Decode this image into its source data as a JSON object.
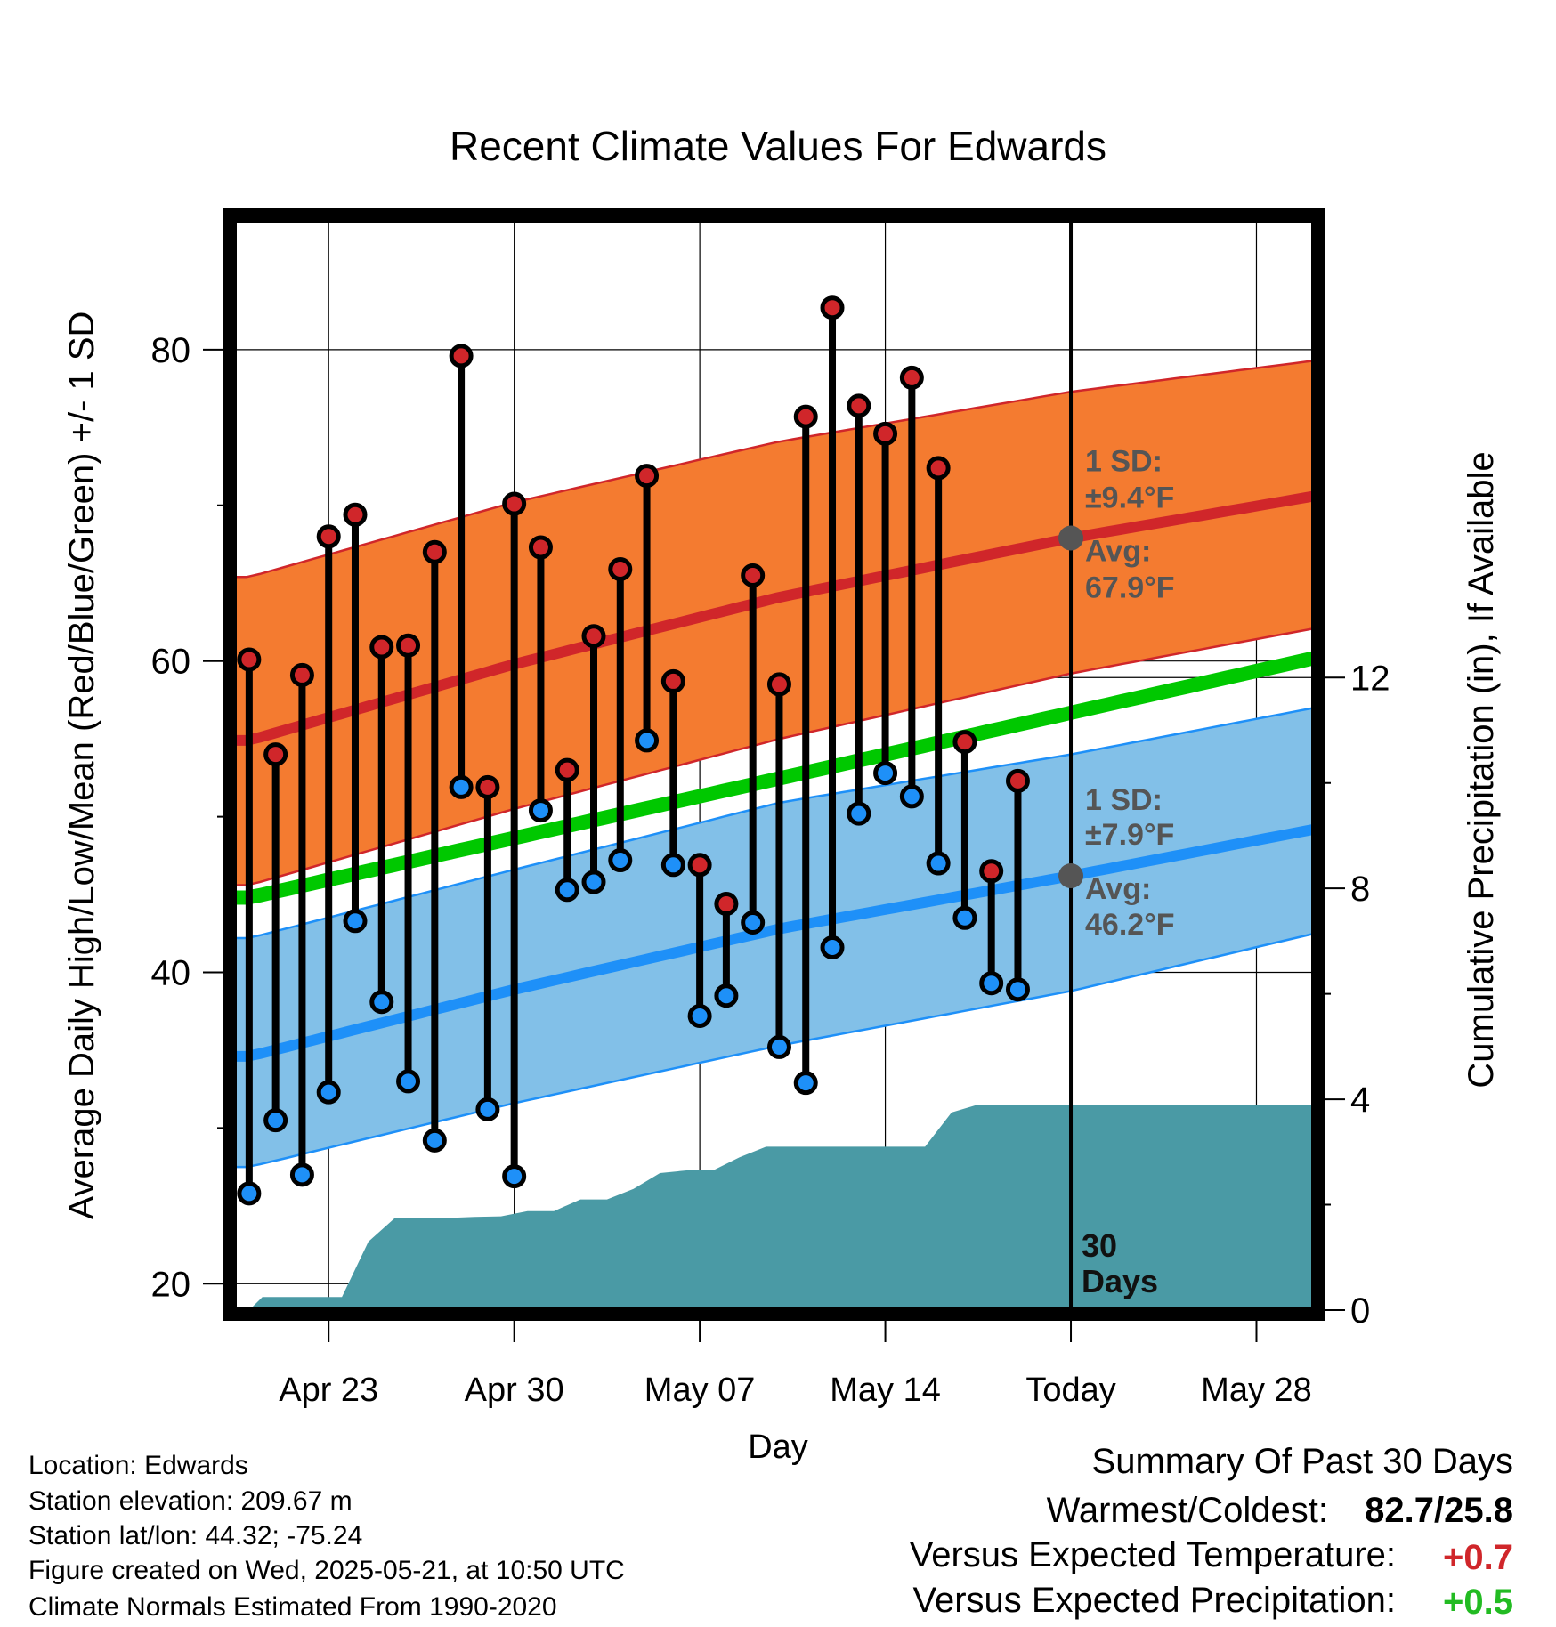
{
  "chart_data": {
    "type": "line",
    "title": "Recent Climate Values For Edwards",
    "xlabel": "Day",
    "ylabel": "Average Daily High/Low/Mean (Red/Blue/Green) +/- 1 SD",
    "y2label": "Cumulative Precipitation (in), If Available",
    "x_tick_labels": [
      "Apr 23",
      "Apr 30",
      "May 07",
      "May 14",
      "Today",
      "May 28"
    ],
    "x_tick_days": [
      3,
      10,
      17,
      24,
      31,
      38
    ],
    "xlim": [
      -0.6,
      40.2
    ],
    "ylim": [
      18.3,
      88.4
    ],
    "y_ticks": [
      20,
      40,
      60,
      80
    ],
    "y2lim": [
      0,
      20.7
    ],
    "y2_ticks": [
      0,
      4,
      8,
      12
    ],
    "grid": true,
    "days": [
      0,
      1,
      2,
      3,
      4,
      5,
      6,
      7,
      8,
      9,
      10,
      11,
      12,
      13,
      14,
      15,
      16,
      17,
      18,
      19,
      20,
      21,
      22,
      23,
      24,
      25,
      26,
      27,
      28,
      29
    ],
    "observed_high": [
      60.1,
      54.0,
      59.1,
      68.0,
      69.4,
      60.9,
      61.0,
      67.0,
      79.6,
      51.9,
      70.1,
      67.3,
      53.0,
      61.6,
      65.9,
      71.9,
      58.7,
      46.9,
      44.4,
      65.5,
      58.5,
      75.7,
      82.7,
      76.4,
      74.6,
      78.2,
      72.4,
      54.8,
      46.5,
      52.3
    ],
    "observed_low": [
      25.8,
      30.5,
      27.0,
      32.3,
      43.3,
      38.1,
      33.0,
      29.2,
      51.9,
      31.2,
      26.9,
      50.4,
      45.3,
      45.8,
      47.2,
      54.9,
      46.9,
      37.2,
      38.5,
      43.2,
      35.2,
      32.9,
      41.6,
      50.2,
      52.8,
      51.3,
      47.0,
      43.5,
      39.3,
      38.9
    ],
    "normal_high": {
      "days": [
        0,
        10,
        20,
        31,
        40.2
      ],
      "mean": [
        54.9,
        59.8,
        64.1,
        67.9,
        70.6
      ],
      "upper": [
        65.4,
        70.2,
        74.1,
        77.3,
        79.3
      ],
      "lower": [
        45.6,
        50.5,
        55.0,
        59.2,
        62.1
      ]
    },
    "normal_low": {
      "days": [
        0,
        10,
        20,
        31,
        40.2
      ],
      "mean": [
        34.6,
        38.9,
        42.8,
        46.2,
        49.2
      ],
      "upper": [
        42.2,
        46.6,
        50.9,
        54.0,
        57.0
      ],
      "lower": [
        27.5,
        31.6,
        35.3,
        38.8,
        42.5
      ]
    },
    "normal_mean": {
      "days": [
        0,
        40.2
      ],
      "values": [
        44.8,
        60.2
      ]
    },
    "cumulative_precipitation": {
      "days": [
        0,
        0.5,
        3.5,
        4.5,
        5.5,
        7.5,
        8.5,
        9.5,
        10.5,
        11.5,
        12.5,
        13.5,
        14.5,
        15.5,
        16.5,
        17.5,
        18.5,
        19.5,
        23.5,
        25.5,
        26.5,
        27.5,
        40.2
      ],
      "values": [
        0.0,
        0.25,
        0.25,
        1.3,
        1.75,
        1.75,
        1.77,
        1.78,
        1.88,
        1.88,
        2.1,
        2.1,
        2.3,
        2.6,
        2.65,
        2.65,
        2.9,
        3.1,
        3.1,
        3.1,
        3.75,
        3.9,
        3.9
      ]
    },
    "today_day": 31,
    "annotations": {
      "high_sd_label": "1 SD:",
      "high_sd_value": "±9.4°F",
      "high_avg_label": "Avg:",
      "high_avg_value": "67.9°F",
      "low_sd_label": "1 SD:",
      "low_sd_value": "±7.9°F",
      "low_avg_label": "Avg:",
      "low_avg_value": "46.2°F",
      "days_label_1": "30",
      "days_label_2": "Days"
    },
    "colors": {
      "high_band": "#f47b30",
      "high_line": "#d0262a",
      "low_band": "#82c0e8",
      "low_line": "#1e90f8",
      "mean_line": "#00c800",
      "precip": "#4a9aa5",
      "high_dot": "#d0262a",
      "low_dot": "#1e90f8",
      "annotation": "#555555"
    }
  },
  "info": {
    "location": "Location: Edwards",
    "elevation": "Station elevation: 209.67 m",
    "latlon": "Station lat/lon: 44.32; -75.24",
    "created": "Figure created on Wed, 2025-05-21, at 10:50 UTC",
    "normals": "Climate Normals Estimated From 1990-2020"
  },
  "summary": {
    "title": "Summary Of Past 30 Days",
    "warmest_label": "Warmest/Coldest:",
    "warmest_value": "82.7/25.8",
    "temp_label": "Versus Expected Temperature:",
    "temp_value": "+0.7",
    "temp_color": "#d0262a",
    "precip_label": "Versus Expected Precipitation:",
    "precip_value": "+0.5",
    "precip_color": "#22bb22"
  }
}
